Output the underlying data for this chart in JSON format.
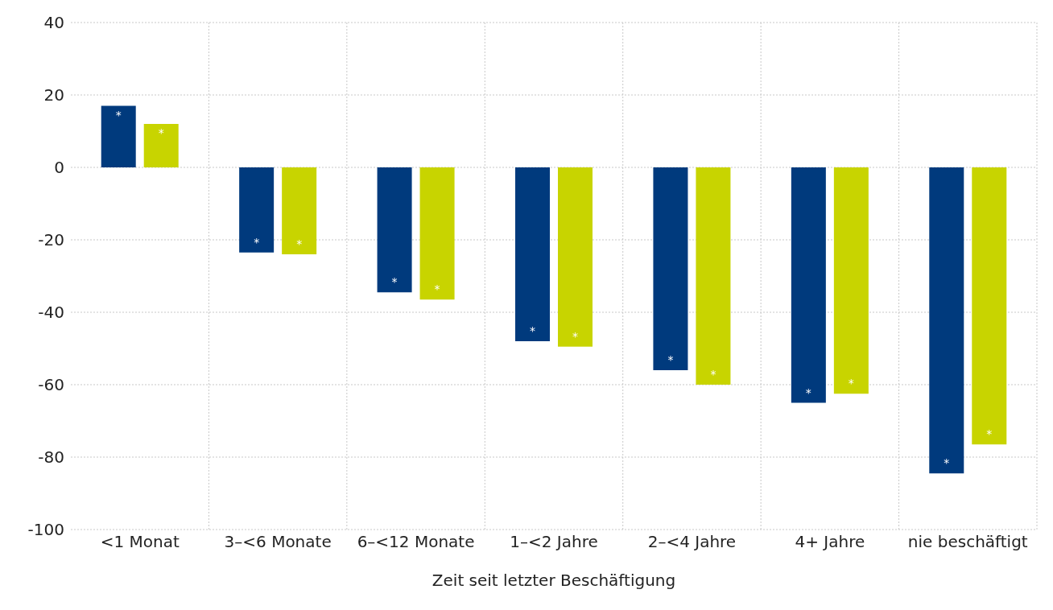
{
  "chart_data": {
    "type": "bar",
    "xlabel": "Zeit seit letzter Beschäftigung",
    "categories": [
      "<1 Monat",
      "3–<6 Monate",
      "6–<12 Monate",
      "1–<2 Jahre",
      "2–<4 Jahre",
      "4+ Jahre",
      "nie beschäftigt"
    ],
    "series": [
      {
        "color": "#003a7d",
        "values": [
          17,
          -23.5,
          -34.5,
          -48,
          -56,
          -65,
          -84.5
        ],
        "value_labels": [
          "*",
          "*",
          "*",
          "*",
          "*",
          "*",
          "*"
        ]
      },
      {
        "color": "#c8d400",
        "values": [
          12,
          -24,
          -36.5,
          -49.5,
          -60,
          -62.5,
          -76.5
        ],
        "value_labels": [
          "*",
          "*",
          "*",
          "*",
          "*",
          "*",
          "*"
        ]
      }
    ],
    "ylim": [
      -100,
      40
    ],
    "yticks": [
      -100,
      -80,
      -60,
      -40,
      -20,
      0,
      20,
      40
    ],
    "grid": true,
    "legend": false
  }
}
